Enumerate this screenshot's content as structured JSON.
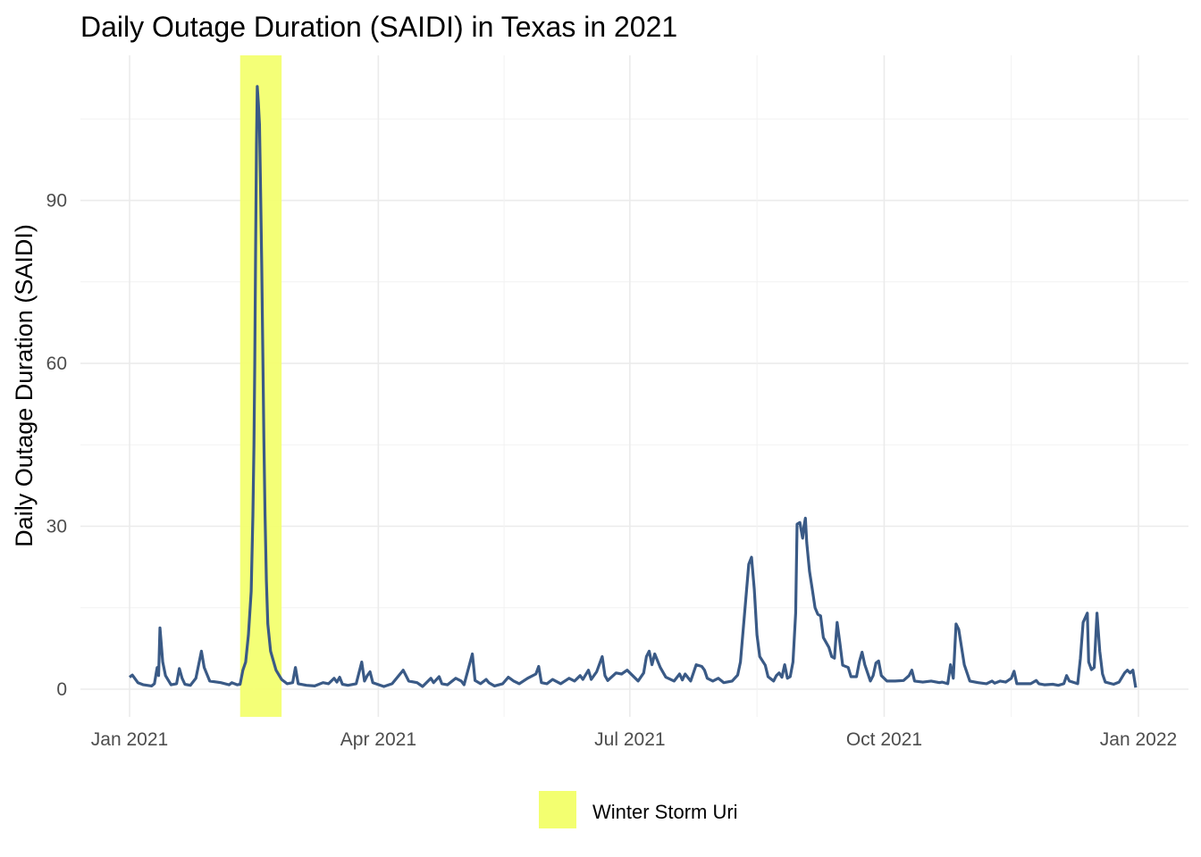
{
  "chart_data": {
    "type": "line",
    "title": "Daily Outage Duration (SAIDI) in Texas in 2021",
    "xlabel": "",
    "ylabel": "Daily Outage Duration (SAIDI)",
    "x_unit": "day of year 2021 (0 = Jan 1, 2021)",
    "xlim": [
      0,
      365
    ],
    "ylim": [
      -5,
      117
    ],
    "x_ticks": [
      {
        "day": 0,
        "label": "Jan 2021"
      },
      {
        "day": 90,
        "label": "Apr 2021"
      },
      {
        "day": 181,
        "label": "Jul 2021"
      },
      {
        "day": 273,
        "label": "Oct 2021"
      },
      {
        "day": 365,
        "label": "Jan 2022"
      }
    ],
    "y_ticks": [
      0,
      30,
      60,
      90
    ],
    "grid": true,
    "line_color": "#3A5A86",
    "highlight": {
      "label": "Winter Storm Uri",
      "start_day": 40,
      "end_day": 55,
      "color": "#F3FF70"
    },
    "legend": {
      "placement": "bottom",
      "entries": [
        "Winter Storm Uri"
      ]
    },
    "series": [
      {
        "name": "SAIDI",
        "points": [
          [
            0,
            2.2
          ],
          [
            1,
            2.6
          ],
          [
            3,
            1.2
          ],
          [
            5,
            0.8
          ],
          [
            8,
            0.6
          ],
          [
            9,
            1
          ],
          [
            10,
            4
          ],
          [
            10.5,
            2.5
          ],
          [
            11,
            11.3
          ],
          [
            12,
            5
          ],
          [
            13,
            2.5
          ],
          [
            15,
            0.8
          ],
          [
            17,
            1
          ],
          [
            18,
            3.8
          ],
          [
            19,
            2
          ],
          [
            20,
            0.9
          ],
          [
            22,
            0.7
          ],
          [
            24,
            2
          ],
          [
            26,
            7
          ],
          [
            27,
            4
          ],
          [
            29,
            1.5
          ],
          [
            33,
            1.2
          ],
          [
            36,
            0.8
          ],
          [
            37,
            1.2
          ],
          [
            39,
            0.8
          ],
          [
            40,
            0.9
          ],
          [
            41,
            3.5
          ],
          [
            42,
            5
          ],
          [
            43,
            10
          ],
          [
            44,
            18
          ],
          [
            44.6,
            32
          ],
          [
            45,
            45
          ],
          [
            45.3,
            60
          ],
          [
            45.6,
            80
          ],
          [
            45.9,
            100
          ],
          [
            46.2,
            111
          ],
          [
            46.6,
            108
          ],
          [
            47,
            104
          ],
          [
            47.4,
            92
          ],
          [
            47.8,
            78
          ],
          [
            48.2,
            62
          ],
          [
            48.6,
            46
          ],
          [
            49,
            32
          ],
          [
            49.5,
            20
          ],
          [
            50,
            12
          ],
          [
            51,
            7
          ],
          [
            53,
            3.5
          ],
          [
            55,
            1.8
          ],
          [
            57,
            1
          ],
          [
            59,
            1.2
          ],
          [
            60,
            4
          ],
          [
            61,
            1
          ],
          [
            64,
            0.7
          ],
          [
            67,
            0.6
          ],
          [
            70,
            1.2
          ],
          [
            72,
            1
          ],
          [
            74,
            2
          ],
          [
            75,
            1.3
          ],
          [
            76,
            2.2
          ],
          [
            77,
            0.9
          ],
          [
            79,
            0.7
          ],
          [
            82,
            1
          ],
          [
            84,
            5
          ],
          [
            85,
            1.5
          ],
          [
            86,
            2.5
          ],
          [
            87,
            3.2
          ],
          [
            88,
            1.2
          ],
          [
            92,
            0.5
          ],
          [
            95,
            1
          ],
          [
            99,
            3.5
          ],
          [
            101,
            1.5
          ],
          [
            104,
            1.2
          ],
          [
            106,
            0.5
          ],
          [
            109,
            2
          ],
          [
            110,
            1.2
          ],
          [
            112,
            2.3
          ],
          [
            113,
            1
          ],
          [
            115,
            0.8
          ],
          [
            118,
            2
          ],
          [
            120,
            1.5
          ],
          [
            121,
            0.8
          ],
          [
            124,
            6.5
          ],
          [
            125,
            1.6
          ],
          [
            127,
            1
          ],
          [
            129,
            1.8
          ],
          [
            130,
            1.2
          ],
          [
            132,
            0.6
          ],
          [
            135,
            1
          ],
          [
            137,
            2.2
          ],
          [
            139,
            1.5
          ],
          [
            141,
            1
          ],
          [
            144,
            2
          ],
          [
            147,
            2.8
          ],
          [
            148,
            4.2
          ],
          [
            149,
            1.2
          ],
          [
            151,
            1
          ],
          [
            153,
            1.8
          ],
          [
            156,
            1
          ],
          [
            159,
            2
          ],
          [
            161,
            1.5
          ],
          [
            163,
            2.5
          ],
          [
            164,
            1.8
          ],
          [
            166,
            3.5
          ],
          [
            167,
            1.8
          ],
          [
            169,
            3.2
          ],
          [
            171,
            6
          ],
          [
            172,
            2.5
          ],
          [
            173,
            1.6
          ],
          [
            176,
            3
          ],
          [
            178,
            2.8
          ],
          [
            180,
            3.5
          ],
          [
            182,
            2.5
          ],
          [
            184,
            1.5
          ],
          [
            186,
            3
          ],
          [
            187,
            6
          ],
          [
            188,
            7
          ],
          [
            189,
            4.5
          ],
          [
            190,
            6.5
          ],
          [
            192,
            4
          ],
          [
            194,
            2.2
          ],
          [
            197,
            1.5
          ],
          [
            199,
            2.8
          ],
          [
            200,
            1.7
          ],
          [
            201,
            2.8
          ],
          [
            203,
            1.5
          ],
          [
            205,
            4.5
          ],
          [
            207,
            4.2
          ],
          [
            208,
            3.5
          ],
          [
            209,
            2
          ],
          [
            211,
            1.5
          ],
          [
            213,
            2
          ],
          [
            215,
            1.2
          ],
          [
            218,
            1.5
          ],
          [
            220,
            2.6
          ],
          [
            221,
            5
          ],
          [
            222,
            11
          ],
          [
            223,
            17
          ],
          [
            224,
            23
          ],
          [
            225,
            24.3
          ],
          [
            226,
            18.4
          ],
          [
            227,
            10
          ],
          [
            228,
            6
          ],
          [
            230,
            4.4
          ],
          [
            231,
            2.3
          ],
          [
            233,
            1.5
          ],
          [
            234,
            2.5
          ],
          [
            235,
            3
          ],
          [
            236,
            2.2
          ],
          [
            237,
            4.5
          ],
          [
            238,
            2
          ],
          [
            239,
            2.3
          ],
          [
            240,
            5
          ],
          [
            241,
            14
          ],
          [
            241.5,
            30.4
          ],
          [
            242.5,
            30.7
          ],
          [
            243.5,
            27.8
          ],
          [
            244,
            30
          ],
          [
            244.5,
            31.5
          ],
          [
            245,
            27
          ],
          [
            246,
            21.7
          ],
          [
            247,
            18.4
          ],
          [
            248,
            15
          ],
          [
            249,
            13.8
          ],
          [
            250,
            13.5
          ],
          [
            251,
            9.5
          ],
          [
            253,
            7.7
          ],
          [
            254,
            6
          ],
          [
            255,
            5.7
          ],
          [
            256,
            12.3
          ],
          [
            257,
            8.5
          ],
          [
            258,
            4.4
          ],
          [
            260,
            4
          ],
          [
            261,
            2.3
          ],
          [
            263,
            2.3
          ],
          [
            264,
            5
          ],
          [
            265,
            6.8
          ],
          [
            266,
            4.5
          ],
          [
            268,
            1.5
          ],
          [
            269,
            2.5
          ],
          [
            270,
            4.8
          ],
          [
            271,
            5.2
          ],
          [
            272,
            2.5
          ],
          [
            274,
            1.5
          ],
          [
            277,
            1.5
          ],
          [
            280,
            1.6
          ],
          [
            282,
            2.5
          ],
          [
            283,
            3.5
          ],
          [
            284,
            1.5
          ],
          [
            287,
            1.3
          ],
          [
            290,
            1.5
          ],
          [
            293,
            1.2
          ],
          [
            294,
            1.3
          ],
          [
            296,
            1
          ],
          [
            297,
            4.5
          ],
          [
            298,
            2
          ],
          [
            299,
            12
          ],
          [
            300,
            11
          ],
          [
            302,
            4.5
          ],
          [
            304,
            1.5
          ],
          [
            307,
            1.2
          ],
          [
            310,
            1
          ],
          [
            312,
            1.5
          ],
          [
            313,
            1.1
          ],
          [
            315,
            1.5
          ],
          [
            317,
            1.3
          ],
          [
            319,
            2
          ],
          [
            320,
            3.3
          ],
          [
            321,
            1
          ],
          [
            324,
            1
          ],
          [
            326,
            1
          ],
          [
            328,
            1.6
          ],
          [
            329,
            1
          ],
          [
            331,
            0.8
          ],
          [
            334,
            0.9
          ],
          [
            336,
            0.7
          ],
          [
            338,
            1
          ],
          [
            339,
            2.5
          ],
          [
            340,
            1.5
          ],
          [
            343,
            1
          ],
          [
            344,
            5.6
          ],
          [
            345,
            12.3
          ],
          [
            346.5,
            14
          ],
          [
            347,
            5
          ],
          [
            348,
            3.6
          ],
          [
            349,
            4
          ],
          [
            350,
            14
          ],
          [
            351,
            7
          ],
          [
            352,
            2.8
          ],
          [
            353,
            1.3
          ],
          [
            356,
            0.9
          ],
          [
            358,
            1.3
          ],
          [
            360,
            3
          ],
          [
            361,
            3.5
          ],
          [
            362,
            3
          ],
          [
            363,
            3.5
          ],
          [
            364,
            0.3
          ]
        ]
      }
    ]
  }
}
